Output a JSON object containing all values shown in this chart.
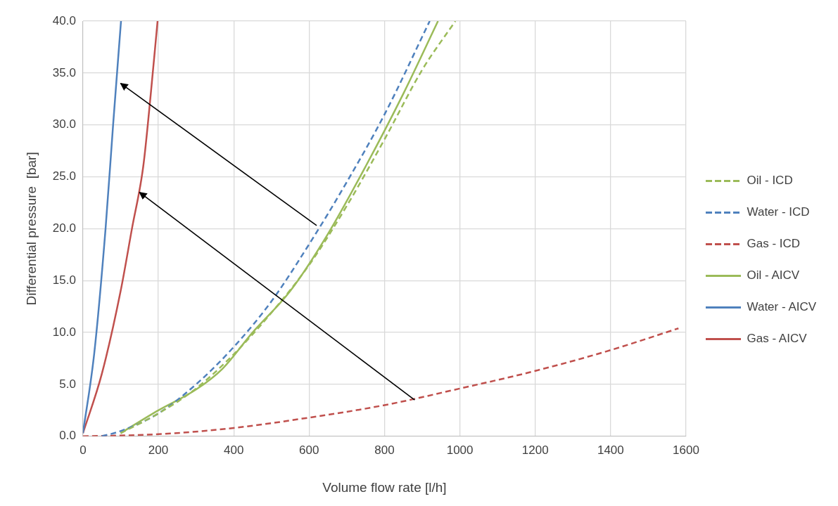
{
  "chart_data": {
    "type": "line",
    "xlabel": "Volume flow rate [l/h]",
    "ylabel": "Differential pressure  [bar]",
    "xlim": [
      0,
      1600
    ],
    "xticks": [
      0,
      200,
      400,
      600,
      800,
      1000,
      1200,
      1400,
      1600
    ],
    "ylim": [
      0,
      40
    ],
    "yticks": [
      {
        "value": 0,
        "label": "0.0"
      },
      {
        "value": 5,
        "label": "5.0"
      },
      {
        "value": 10,
        "label": "10.0"
      },
      {
        "value": 15,
        "label": "15.0"
      },
      {
        "value": 20,
        "label": "20.0"
      },
      {
        "value": 25,
        "label": "25.0"
      },
      {
        "value": 30,
        "label": "30.0"
      },
      {
        "value": 35,
        "label": "35.0"
      },
      {
        "value": 40,
        "label": "40.0"
      }
    ],
    "grid": true,
    "legend": "right",
    "marker": "none",
    "series": [
      {
        "name": "Oil - ICD",
        "color": "#9bbb59",
        "line_style": "dashed",
        "x": [
          100,
          200,
          300,
          400,
          500,
          600,
          700,
          800,
          900,
          988
        ],
        "values": [
          0.3,
          2.2,
          4.6,
          7.9,
          11.9,
          16.5,
          22.2,
          28.6,
          35.3,
          40
        ]
      },
      {
        "name": "Water - ICD",
        "color": "#4f81bd",
        "line_style": "dashed",
        "x": [
          50,
          100,
          200,
          300,
          400,
          500,
          600,
          700,
          800,
          920
        ],
        "values": [
          0,
          0.5,
          2.2,
          5,
          8.6,
          13,
          18.5,
          24.5,
          31,
          40
        ]
      },
      {
        "name": "Gas - ICD",
        "color": "#c0504d",
        "line_style": "dashed",
        "x": [
          0,
          200,
          400,
          600,
          800,
          1000,
          1200,
          1400,
          1580
        ],
        "values": [
          0,
          0.2,
          0.8,
          1.8,
          3,
          4.6,
          6.3,
          8.3,
          10.4
        ]
      },
      {
        "name": "Oil - AICV",
        "color": "#9bbb59",
        "line_style": "solid",
        "x": [
          100,
          200,
          300,
          370,
          450,
          550,
          650,
          750,
          850,
          942
        ],
        "values": [
          0.3,
          2.5,
          4.5,
          6.5,
          10,
          14,
          19.5,
          26,
          33,
          40
        ]
      },
      {
        "name": "Water - AICV",
        "color": "#4f81bd",
        "line_style": "solid",
        "x": [
          0,
          30,
          60,
          80,
          101
        ],
        "values": [
          0.3,
          8,
          20,
          30,
          40
        ]
      },
      {
        "name": "Gas - AICV",
        "color": "#c0504d",
        "line_style": "solid",
        "x": [
          0,
          50,
          100,
          130,
          160,
          180,
          198
        ],
        "values": [
          0.3,
          6,
          14,
          20,
          26,
          33,
          40
        ]
      }
    ]
  }
}
